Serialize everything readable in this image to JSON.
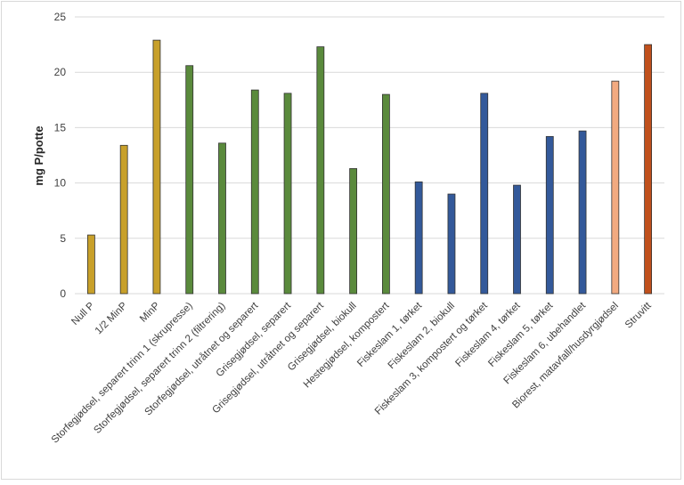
{
  "chart_data": {
    "type": "bar",
    "title": "",
    "xlabel": "",
    "ylabel": "mg P/potte",
    "ylim": [
      0,
      25
    ],
    "yticks": [
      0,
      5,
      10,
      15,
      20,
      25
    ],
    "grid": true,
    "legend": "none",
    "categories": [
      "Null P",
      "1/2 MinP",
      "MinP",
      "Storfegjødsel, separert trinn 1 (skrupresse)",
      "Storfegjødsel, separert trinn 2 (filtrering)",
      "Storfegjødsel, utråtnet og separert",
      "Grisegjødsel, separert",
      "Grisegjødsel, utråtnet og separert",
      "Grisegjødsel, biokull",
      "Hestegjødsel, kompostert",
      "Fiskeslam 1, tørket",
      "Fiskeslam 2, biokull",
      "Fiskeslam 3, kompostert og tørket",
      "Fiskeslam 4, tørket",
      "Fiskeslam 5, tørket",
      "Fiskeslam 6,  ubehandlet",
      "Biorest, matavfall/husdyrgjødsel",
      "Struvitt"
    ],
    "values": [
      5.3,
      13.4,
      22.9,
      20.6,
      13.6,
      18.4,
      18.1,
      22.3,
      11.3,
      18.0,
      10.1,
      9.0,
      18.1,
      9.8,
      14.2,
      14.7,
      19.2,
      22.5
    ],
    "colors": [
      "#c8a02a",
      "#c8a02a",
      "#c8a02a",
      "#5a8a3c",
      "#5a8a3c",
      "#5a8a3c",
      "#5a8a3c",
      "#5a8a3c",
      "#5a8a3c",
      "#5a8a3c",
      "#33599a",
      "#33599a",
      "#33599a",
      "#33599a",
      "#33599a",
      "#33599a",
      "#f2aa80",
      "#c0501c"
    ],
    "bar_outline": "#333333",
    "grid_color": "#d9d9d9"
  }
}
